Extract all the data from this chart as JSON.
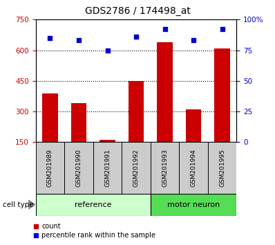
{
  "title": "GDS2786 / 174498_at",
  "samples": [
    "GSM201989",
    "GSM201990",
    "GSM201991",
    "GSM201992",
    "GSM201993",
    "GSM201994",
    "GSM201995"
  ],
  "bar_values": [
    390,
    340,
    160,
    450,
    640,
    310,
    610
  ],
  "percentile_values": [
    85,
    83,
    75,
    86,
    92,
    83,
    92
  ],
  "bar_color": "#cc0000",
  "dot_color": "#0000cc",
  "ylim_left": [
    150,
    750
  ],
  "ylim_right": [
    0,
    100
  ],
  "yticks_left": [
    150,
    300,
    450,
    600,
    750
  ],
  "yticks_right": [
    0,
    25,
    50,
    75,
    100
  ],
  "ytick_labels_right": [
    "0",
    "25",
    "50",
    "75",
    "100%"
  ],
  "reference_color": "#ccffcc",
  "motor_neuron_color": "#55dd55",
  "sample_label_bg": "#cccccc",
  "legend_count_label": "count",
  "legend_percentile_label": "percentile rank within the sample",
  "bar_width": 0.55,
  "grid_yticks": [
    300,
    450,
    600
  ],
  "left_ytick_color": "#cc0000",
  "right_ytick_color": "#0000cc"
}
